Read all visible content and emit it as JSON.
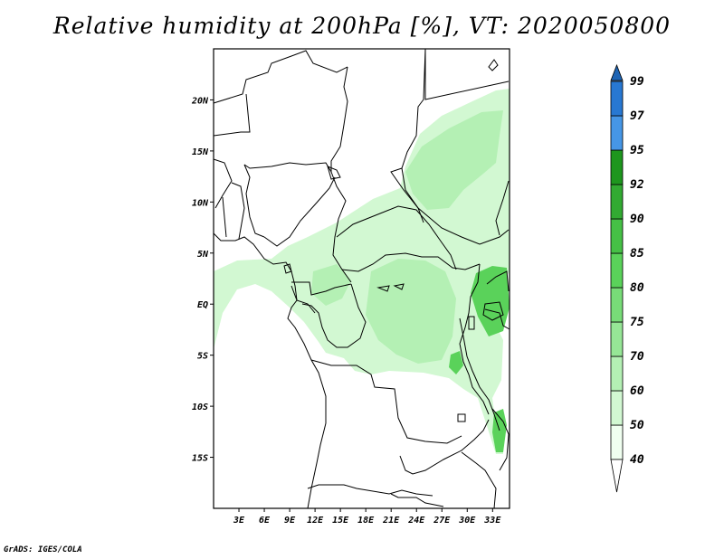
{
  "title": "Relative humidity at 200hPa [%], VT: 2020050800",
  "footer": "GrADS: IGES/COLA",
  "map": {
    "lon_range": [
      0,
      35
    ],
    "lat_range": [
      -20,
      25
    ],
    "x_ticks": [
      {
        "value": 3,
        "label": "3E"
      },
      {
        "value": 6,
        "label": "6E"
      },
      {
        "value": 9,
        "label": "9E"
      },
      {
        "value": 12,
        "label": "12E"
      },
      {
        "value": 15,
        "label": "15E"
      },
      {
        "value": 18,
        "label": "18E"
      },
      {
        "value": 21,
        "label": "21E"
      },
      {
        "value": 24,
        "label": "24E"
      },
      {
        "value": 27,
        "label": "27E"
      },
      {
        "value": 30,
        "label": "30E"
      },
      {
        "value": 33,
        "label": "33E"
      }
    ],
    "y_ticks": [
      {
        "value": 20,
        "label": "20N"
      },
      {
        "value": 15,
        "label": "15N"
      },
      {
        "value": 10,
        "label": "10N"
      },
      {
        "value": 5,
        "label": "5N"
      },
      {
        "value": 0,
        "label": "EQ"
      },
      {
        "value": -5,
        "label": "5S"
      },
      {
        "value": -10,
        "label": "10S"
      },
      {
        "value": -15,
        "label": "15S"
      }
    ]
  },
  "colorbar": {
    "levels": [
      "40",
      "50",
      "60",
      "70",
      "75",
      "80",
      "85",
      "90",
      "92",
      "95",
      "97",
      "99"
    ],
    "colors": [
      "#f0fff0",
      "#d2f8d2",
      "#b4f0b4",
      "#96e696",
      "#78dc78",
      "#5ad25a",
      "#46c046",
      "#32aa32",
      "#1e961e",
      "#4696e6",
      "#2878d2",
      "#1e64b4"
    ],
    "under_color": "#ffffff",
    "over_color": "#1e64b4"
  },
  "shading": {
    "fill_colors": {
      "light": "#d2f8d2",
      "medium": "#b4f0b4",
      "dark": "#5ad25a"
    }
  }
}
